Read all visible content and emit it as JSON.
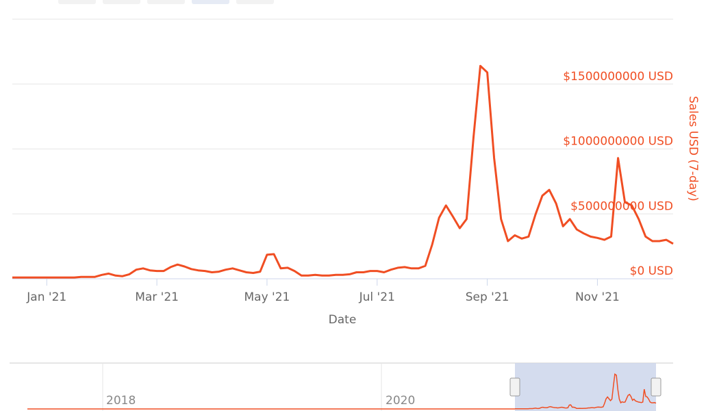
{
  "chart_data": {
    "type": "line",
    "x_label": "Date",
    "y_label": "Sales USD (7-day)",
    "color": "#f04e23",
    "grid": true,
    "categories": [
      null,
      null,
      null,
      null,
      null,
      "Jan '21",
      null,
      null,
      null,
      null,
      null,
      null,
      null,
      null,
      null,
      null,
      null,
      null,
      null,
      null,
      null,
      "Mar '21",
      null,
      null,
      null,
      null,
      null,
      null,
      null,
      null,
      null,
      null,
      null,
      null,
      null,
      null,
      null,
      "May '21",
      null,
      null,
      null,
      null,
      null,
      null,
      null,
      null,
      null,
      null,
      null,
      null,
      null,
      null,
      null,
      "Jul '21",
      null,
      null,
      null,
      null,
      null,
      null,
      null,
      null,
      null,
      null,
      null,
      null,
      null,
      null,
      null,
      "Sep '21",
      null,
      null,
      null,
      null,
      null,
      null,
      null,
      null,
      null,
      null,
      null,
      null,
      null,
      null,
      null,
      "Nov '21",
      null,
      null,
      null,
      null,
      null,
      null,
      null,
      null,
      null,
      null,
      null
    ],
    "values": [
      10000000,
      10000000,
      10000000,
      10000000,
      10000000,
      10000000,
      10000000,
      10000000,
      10000000,
      10000000,
      15000000,
      15000000,
      15000000,
      30000000,
      40000000,
      25000000,
      20000000,
      35000000,
      70000000,
      80000000,
      65000000,
      60000000,
      60000000,
      90000000,
      110000000,
      95000000,
      75000000,
      65000000,
      60000000,
      50000000,
      55000000,
      70000000,
      80000000,
      65000000,
      50000000,
      45000000,
      55000000,
      185000000,
      190000000,
      80000000,
      85000000,
      60000000,
      25000000,
      25000000,
      30000000,
      25000000,
      25000000,
      30000000,
      30000000,
      35000000,
      50000000,
      50000000,
      60000000,
      60000000,
      50000000,
      70000000,
      85000000,
      90000000,
      80000000,
      80000000,
      100000000,
      265000000,
      470000000,
      565000000,
      480000000,
      390000000,
      460000000,
      1090000000,
      1640000000,
      1590000000,
      930000000,
      460000000,
      290000000,
      335000000,
      310000000,
      325000000,
      495000000,
      640000000,
      685000000,
      580000000,
      405000000,
      460000000,
      380000000,
      350000000,
      325000000,
      315000000,
      300000000,
      325000000,
      930000000,
      590000000,
      565000000,
      460000000,
      325000000,
      290000000,
      290000000,
      300000000,
      270000000
    ],
    "ylim": [
      0,
      2000000000
    ],
    "yticks": [
      {
        "value": 0,
        "label": "$0 USD"
      },
      {
        "value": 500000000,
        "label": "$500000000 USD"
      },
      {
        "value": 1000000000,
        "label": "$1000000000 USD"
      },
      {
        "value": 1500000000,
        "label": "$1500000000 USD"
      }
    ],
    "navigator": {
      "labels": [
        "2018",
        "2020"
      ]
    }
  }
}
